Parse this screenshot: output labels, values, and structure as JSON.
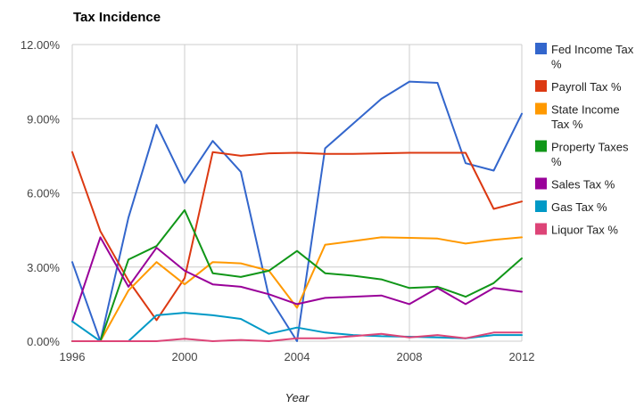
{
  "chart_data": {
    "type": "line",
    "title": "Tax Incidence",
    "xlabel": "Year",
    "ylabel": "",
    "xlim": [
      1996,
      2012
    ],
    "ylim": [
      0,
      0.12
    ],
    "x_ticks": [
      1996,
      2000,
      2004,
      2008,
      2012
    ],
    "x_tick_labels": [
      "1996",
      "2000",
      "2004",
      "2008",
      "2012"
    ],
    "y_ticks": [
      0,
      0.03,
      0.06,
      0.09,
      0.12
    ],
    "y_tick_labels": [
      "0.00%",
      "3.00%",
      "6.00%",
      "9.00%",
      "12.00%"
    ],
    "grid": true,
    "legend_position": "right",
    "x": [
      1996,
      1997,
      1998,
      1999,
      2000,
      2001,
      2002,
      2003,
      2004,
      2005,
      2006,
      2007,
      2008,
      2009,
      2010,
      2011,
      2012
    ],
    "series": [
      {
        "name": "Fed Income Tax %",
        "legend_lines": [
          "Fed Income Tax",
          "%"
        ],
        "color": "#3366cc",
        "values": [
          0.032,
          0.0,
          0.05,
          0.0875,
          0.064,
          0.081,
          0.0685,
          0.018,
          0.0,
          0.078,
          0.088,
          0.098,
          0.105,
          0.1045,
          0.072,
          0.069,
          0.092
        ]
      },
      {
        "name": "Payroll Tax %",
        "legend_lines": [
          "Payroll Tax %"
        ],
        "color": "#dc3912",
        "values": [
          0.0765,
          0.0445,
          0.0245,
          0.0085,
          0.0255,
          0.0765,
          0.075,
          0.076,
          0.0762,
          0.0758,
          0.0758,
          0.076,
          0.0762,
          0.0762,
          0.0762,
          0.0535,
          0.0565
        ]
      },
      {
        "name": "State Income Tax %",
        "legend_lines": [
          "State Income",
          "Tax %"
        ],
        "color": "#ff9900",
        "values": [
          0.0,
          0.0,
          0.0205,
          0.032,
          0.023,
          0.032,
          0.0315,
          0.0285,
          0.0135,
          0.039,
          0.0405,
          0.042,
          0.0418,
          0.0415,
          0.0395,
          0.041,
          0.042
        ]
      },
      {
        "name": "Property Taxes %",
        "legend_lines": [
          "Property Taxes",
          "%"
        ],
        "color": "#109618",
        "values": [
          0.0,
          0.0,
          0.033,
          0.0385,
          0.053,
          0.0275,
          0.026,
          0.0285,
          0.0365,
          0.0275,
          0.0265,
          0.025,
          0.0215,
          0.022,
          0.018,
          0.0235,
          0.0335
        ]
      },
      {
        "name": "Sales Tax %",
        "legend_lines": [
          "Sales Tax %"
        ],
        "color": "#990099",
        "values": [
          0.008,
          0.042,
          0.022,
          0.0378,
          0.0285,
          0.023,
          0.022,
          0.019,
          0.015,
          0.0175,
          0.018,
          0.0185,
          0.015,
          0.0215,
          0.015,
          0.0215,
          0.02
        ]
      },
      {
        "name": "Gas Tax %",
        "legend_lines": [
          "Gas Tax %"
        ],
        "color": "#0099c6",
        "values": [
          0.008,
          0.0,
          0.0,
          0.0105,
          0.0115,
          0.0105,
          0.009,
          0.003,
          0.0055,
          0.0035,
          0.0025,
          0.002,
          0.0018,
          0.0015,
          0.0012,
          0.0025,
          0.0025
        ]
      },
      {
        "name": "Liquor Tax %",
        "legend_lines": [
          "Liquor Tax %"
        ],
        "color": "#dd4477",
        "values": [
          0.0,
          0.0,
          0.0,
          0.0,
          0.001,
          0.0,
          0.0005,
          0.0,
          0.0012,
          0.0012,
          0.002,
          0.003,
          0.0015,
          0.0025,
          0.0012,
          0.0035,
          0.0035
        ]
      }
    ]
  }
}
